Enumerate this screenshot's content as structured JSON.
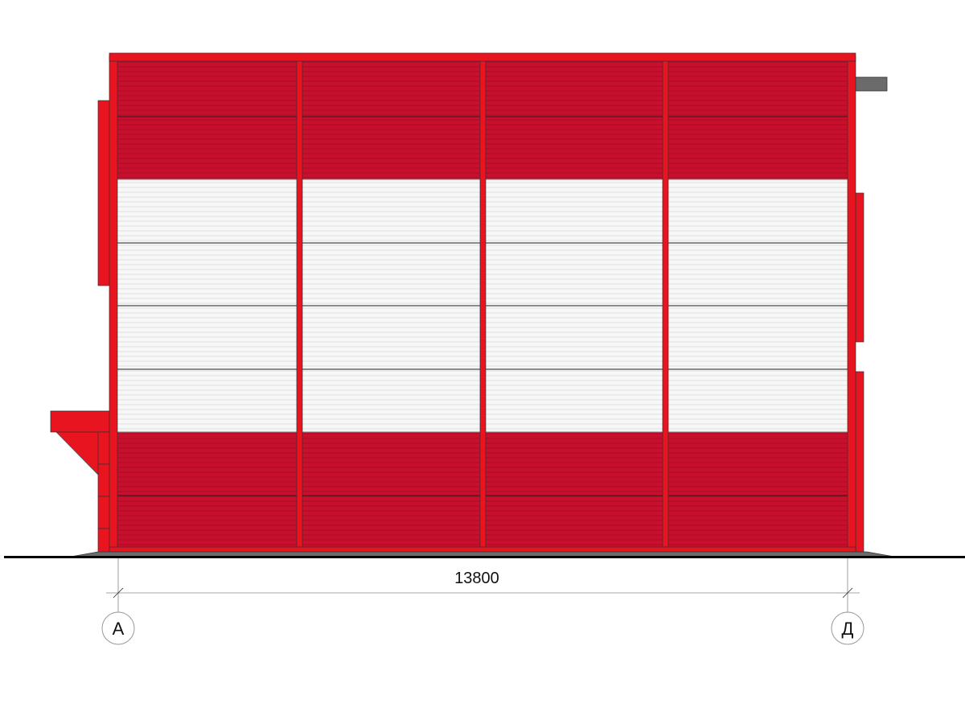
{
  "drawing": {
    "dimension_label": "13800",
    "axes": [
      {
        "label": "А"
      },
      {
        "label": "Д"
      }
    ],
    "colors": {
      "cladding_red": "#c8102e",
      "trim_red": "#e8141f",
      "cladding_white": "#f4f6f4",
      "plinth_grey": "#6b6b6b",
      "line": "#111111"
    }
  }
}
